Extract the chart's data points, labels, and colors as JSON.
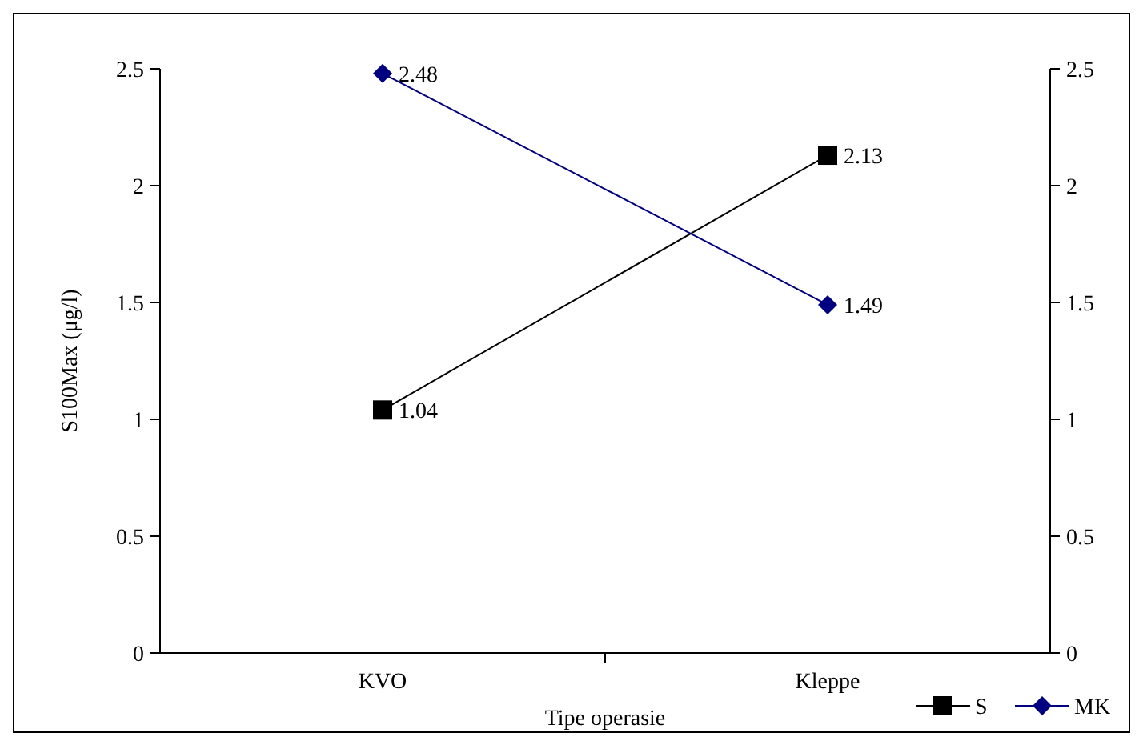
{
  "chart_data": {
    "type": "line",
    "xlabel": "Tipe operasie",
    "ylabel": "S100Max (μg/l)",
    "categories": [
      "KVO",
      "Kleppe"
    ],
    "series": [
      {
        "name": "S",
        "color": "#000000",
        "values": [
          1.04,
          2.13
        ],
        "marker": "square"
      },
      {
        "name": "MK",
        "color": "#000080",
        "values": [
          2.48,
          1.49
        ],
        "marker": "diamond"
      }
    ],
    "ylim": [
      0,
      2.5
    ],
    "yticks": [
      0,
      0.5,
      1,
      1.5,
      2,
      2.5
    ],
    "y2lim": [
      0,
      2.5
    ],
    "y2ticks": [
      0,
      0.5,
      1,
      1.5,
      2,
      2.5
    ],
    "data_labels": true,
    "grid": false,
    "legend": "bottom right"
  }
}
